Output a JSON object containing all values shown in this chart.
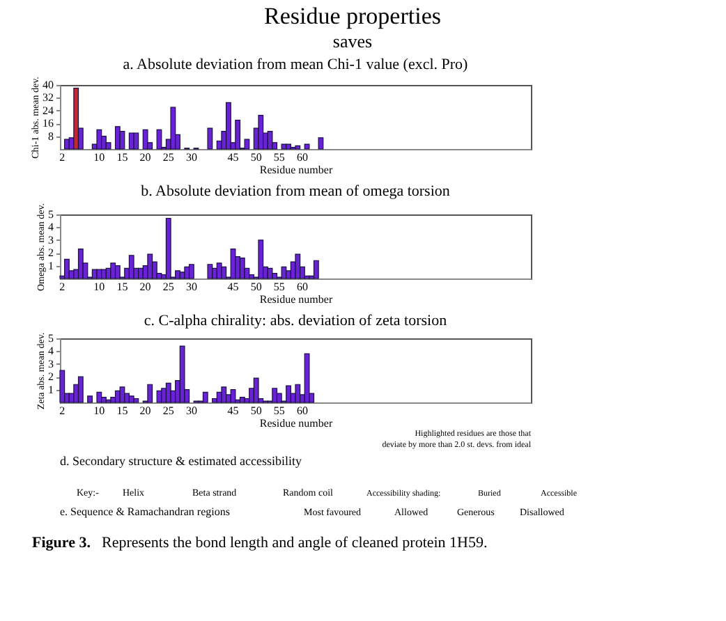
{
  "chart_data": [
    {
      "type": "other",
      "title": "Residue properties",
      "subtitle": "saves"
    },
    {
      "type": "bar",
      "title": "a. Absolute deviation from mean Chi-1 value (excl. Pro)",
      "xlabel": "Residue number",
      "ylabel": "Chi-1 abs. mean dev.",
      "categories": [
        "2",
        null,
        null,
        null,
        null,
        null,
        null,
        null,
        "10",
        null,
        null,
        null,
        null,
        "15",
        null,
        null,
        null,
        null,
        "20",
        null,
        null,
        null,
        null,
        "25",
        null,
        null,
        null,
        null,
        "30",
        null,
        null,
        null,
        null,
        null,
        null,
        null,
        null,
        "45",
        null,
        null,
        null,
        null,
        "50",
        null,
        null,
        null,
        null,
        "55",
        null,
        null,
        null,
        null,
        "60",
        null,
        null,
        null,
        null,
        null,
        null,
        null,
        null,
        null,
        null,
        null,
        null,
        null,
        null,
        null,
        null,
        null,
        null,
        null,
        null,
        null,
        null,
        null,
        null,
        null,
        null,
        null,
        null,
        null,
        null,
        null,
        null,
        null,
        null,
        null,
        null,
        null,
        null,
        null,
        null,
        null,
        null,
        null,
        null,
        null,
        null,
        null,
        null,
        null
      ],
      "values": [
        null,
        6,
        7,
        38,
        13,
        null,
        null,
        3,
        12,
        8,
        4,
        null,
        14,
        11,
        null,
        10,
        10,
        null,
        12,
        4,
        null,
        12,
        1,
        6,
        26,
        9,
        null,
        0.5,
        null,
        0.5,
        null,
        null,
        13,
        null,
        5,
        11,
        29,
        4,
        18,
        0.5,
        6,
        null,
        13,
        21,
        10,
        11,
        4,
        null,
        3,
        3,
        1,
        2,
        null,
        3,
        null,
        null,
        7,
        null,
        null,
        null,
        null,
        null,
        null,
        null,
        null,
        null,
        null,
        null,
        null,
        null,
        null,
        null,
        null,
        null,
        null,
        null,
        null,
        null,
        null,
        null,
        null,
        null,
        null,
        null,
        null,
        null,
        null,
        null,
        null,
        null,
        null,
        null,
        null,
        null,
        null,
        null,
        null,
        null,
        null,
        null,
        null,
        null
      ],
      "colors": [
        "#6a22d6",
        "#6a22d6",
        "#6a22d6",
        "#c4282c",
        "#6a22d6",
        "#6a22d6",
        "#6a22d6",
        "#6a22d6",
        "#6a22d6",
        "#6a22d6",
        "#6a22d6",
        "#6a22d6",
        "#6a22d6",
        "#6a22d6",
        "#6a22d6",
        "#6a22d6",
        "#6a22d6",
        "#6a22d6",
        "#6a22d6",
        "#6a22d6",
        "#6a22d6",
        "#6a22d6",
        "#6a22d6",
        "#6a22d6",
        "#6a22d6",
        "#6a22d6",
        "#6a22d6",
        "#6a22d6",
        "#6a22d6",
        "#6a22d6",
        "#6a22d6",
        "#6a22d6",
        "#6a22d6",
        "#6a22d6",
        "#6a22d6",
        "#6a22d6",
        "#6a22d6",
        "#6a22d6",
        "#6a22d6",
        "#6a22d6",
        "#6a22d6",
        "#6a22d6",
        "#6a22d6",
        "#6a22d6",
        "#6a22d6",
        "#6a22d6",
        "#6a22d6",
        "#6a22d6",
        "#6a22d6",
        "#6a22d6",
        "#6a22d6",
        "#6a22d6",
        "#6a22d6",
        "#6a22d6",
        "#6a22d6",
        "#6a22d6",
        "#6a22d6",
        "#6a22d6",
        "#6a22d6",
        "#6a22d6",
        "#6a22d6",
        "#6a22d6",
        "#6a22d6",
        "#6a22d6",
        "#6a22d6",
        "#6a22d6",
        "#6a22d6",
        "#6a22d6",
        "#6a22d6",
        "#6a22d6",
        "#6a22d6",
        "#6a22d6",
        "#6a22d6",
        "#6a22d6",
        "#6a22d6",
        "#6a22d6",
        "#6a22d6",
        "#6a22d6",
        "#6a22d6",
        "#6a22d6",
        "#6a22d6",
        "#6a22d6",
        "#6a22d6",
        "#6a22d6",
        "#6a22d6",
        "#6a22d6",
        "#6a22d6",
        "#6a22d6",
        "#6a22d6",
        "#6a22d6",
        "#6a22d6",
        "#6a22d6",
        "#6a22d6",
        "#6a22d6",
        "#6a22d6",
        "#6a22d6",
        "#6a22d6",
        "#6a22d6",
        "#6a22d6",
        "#6a22d6",
        "#6a22d6",
        "#6a22d6"
      ],
      "ylim": [
        0,
        40
      ],
      "yticks": [
        8,
        16,
        24,
        32,
        40
      ]
    },
    {
      "type": "bar",
      "title": "b. Absolute deviation from mean of omega torsion",
      "xlabel": "Residue number",
      "ylabel": "Omega abs. mean dev.",
      "color": "#6a22d6",
      "categories": [
        "2",
        null,
        null,
        null,
        null,
        null,
        null,
        null,
        "10",
        null,
        null,
        null,
        null,
        "15",
        null,
        null,
        null,
        null,
        "20",
        null,
        null,
        null,
        null,
        "25",
        null,
        null,
        null,
        null,
        "30",
        null,
        null,
        null,
        null,
        null,
        null,
        null,
        null,
        "45",
        null,
        null,
        null,
        null,
        "50",
        null,
        null,
        null,
        null,
        "55",
        null,
        null,
        null,
        null,
        "60",
        null,
        null,
        null,
        null,
        null,
        null,
        null,
        null,
        null,
        null,
        null,
        null,
        null,
        null,
        null,
        null,
        null,
        null,
        null,
        null,
        null,
        null,
        null,
        null,
        null,
        null,
        null,
        null,
        null,
        null,
        null,
        null,
        null,
        null,
        null,
        null,
        null,
        null,
        null,
        null,
        null,
        null,
        null,
        null,
        null,
        null,
        null,
        null,
        null
      ],
      "values": [
        0.2,
        1.5,
        0.6,
        0.7,
        2.3,
        1.2,
        0.1,
        0.7,
        0.7,
        0.7,
        0.8,
        1.2,
        1.0,
        0.1,
        0.8,
        1.8,
        0.8,
        0.8,
        1.0,
        1.9,
        1.3,
        0.4,
        0.3,
        4.7,
        0.1,
        0.6,
        0.5,
        0.9,
        1.1,
        null,
        null,
        null,
        1.1,
        0.8,
        1.2,
        0.9,
        0.1,
        2.3,
        1.7,
        1.6,
        0.8,
        0.3,
        0.1,
        3.0,
        0.9,
        0.8,
        0.4,
        0.1,
        0.9,
        0.6,
        1.3,
        1.9,
        0.9,
        0.2,
        0.2,
        1.4,
        null,
        null,
        null,
        null,
        null,
        null,
        null,
        null,
        null,
        null,
        null,
        null,
        null,
        null,
        null,
        null,
        null,
        null,
        null,
        null,
        null,
        null,
        null,
        null,
        null,
        null,
        null,
        null,
        null,
        null,
        null,
        null,
        null,
        null,
        null,
        null,
        null,
        null,
        null,
        null,
        null,
        null,
        null,
        null,
        null,
        null
      ],
      "ylim": [
        0,
        5
      ],
      "yticks": [
        1,
        2,
        3,
        4,
        5
      ]
    },
    {
      "type": "bar",
      "title": "c. C-alpha chirality: abs. deviation of zeta torsion",
      "xlabel": "Residue number",
      "ylabel": "Zeta abs. mean dev.",
      "color": "#6a22d6",
      "categories": [
        "2",
        null,
        null,
        null,
        null,
        null,
        null,
        null,
        "10",
        null,
        null,
        null,
        null,
        "15",
        null,
        null,
        null,
        null,
        "20",
        null,
        null,
        null,
        null,
        "25",
        null,
        null,
        null,
        null,
        "30",
        null,
        null,
        null,
        null,
        null,
        null,
        null,
        null,
        "45",
        null,
        null,
        null,
        null,
        "50",
        null,
        null,
        null,
        null,
        "55",
        null,
        null,
        null,
        null,
        "60",
        null,
        null,
        null,
        null,
        null,
        null,
        null,
        null,
        null,
        null,
        null,
        null,
        null,
        null,
        null,
        null,
        null,
        null,
        null,
        null,
        null,
        null,
        null,
        null,
        null,
        null,
        null,
        null,
        null,
        null,
        null,
        null,
        null,
        null,
        null,
        null,
        null,
        null,
        null,
        null,
        null,
        null,
        null,
        null,
        null,
        null,
        null,
        null,
        null
      ],
      "values": [
        2.5,
        0.7,
        0.7,
        1.4,
        2.0,
        null,
        0.5,
        null,
        0.8,
        0.4,
        0.2,
        0.4,
        0.9,
        1.2,
        0.7,
        0.5,
        0.3,
        null,
        0.1,
        1.4,
        null,
        0.9,
        1.1,
        1.5,
        0.9,
        1.7,
        4.4,
        1.0,
        null,
        0.1,
        0.1,
        0.8,
        null,
        0.3,
        0.8,
        1.2,
        0.6,
        1.0,
        0.2,
        0.4,
        0.3,
        1.1,
        1.9,
        0.3,
        0.1,
        0.1,
        1.1,
        0.7,
        0.1,
        1.3,
        0.7,
        1.4,
        0.6,
        3.8,
        0.7,
        null,
        null,
        null,
        null,
        null,
        null,
        null,
        null,
        null,
        null,
        null,
        null,
        null,
        null,
        null,
        null,
        null,
        null,
        null,
        null,
        null,
        null,
        null,
        null,
        null,
        null,
        null,
        null,
        null,
        null,
        null,
        null,
        null,
        null,
        null,
        null,
        null,
        null,
        null,
        null,
        null,
        null,
        null,
        null,
        null,
        null,
        null
      ],
      "ylim": [
        0,
        5
      ],
      "yticks": [
        1,
        2,
        3,
        4,
        5
      ],
      "annotations": [
        "Highlighted residues are those that",
        "deviate by more than 2.0 st. devs. from ideal"
      ]
    },
    {
      "type": "other",
      "annotations": [
        "d. Secondary structure & estimated accessibility",
        "Key:-",
        "Helix",
        "Beta strand",
        "Random coil",
        "Accessibility shading:",
        "Buried",
        "Accessible",
        "e. Sequence & Ramachandran regions",
        "Most favoured",
        "Allowed",
        "Generous",
        "Disallowed",
        "Figure 3.",
        "Represents the bond length and angle of cleaned protein 1H59."
      ]
    }
  ]
}
